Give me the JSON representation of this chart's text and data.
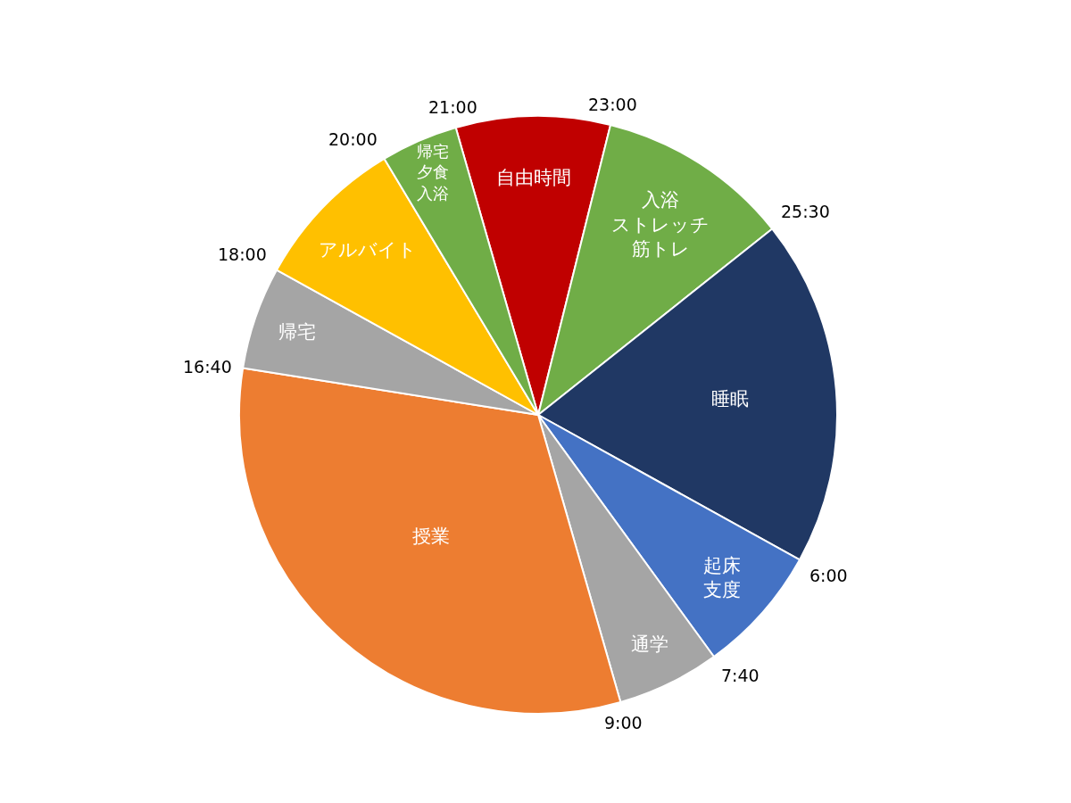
{
  "chart_data": {
    "type": "pie",
    "categories": [
      "自由時間",
      "入浴ストレッチ筋トレ",
      "睡眠",
      "起床支度",
      "通学",
      "授業",
      "帰宅",
      "アルバイト",
      "帰宅夕食入浴"
    ],
    "values": [
      8.333,
      10.417,
      18.75,
      6.944,
      5.556,
      31.944,
      5.556,
      8.333,
      4.167
    ],
    "colors": [
      "#c00000",
      "#70ad47",
      "#203864",
      "#4472c4",
      "#a5a5a5",
      "#ed7d31",
      "#a5a5a5",
      "#ffc000",
      "#70ad47"
    ],
    "annotations": [
      "21:00",
      "23:00",
      "25:30",
      "6:00",
      "7:40",
      "9:00",
      "16:40",
      "18:00",
      "20:00"
    ],
    "legend": false
  }
}
